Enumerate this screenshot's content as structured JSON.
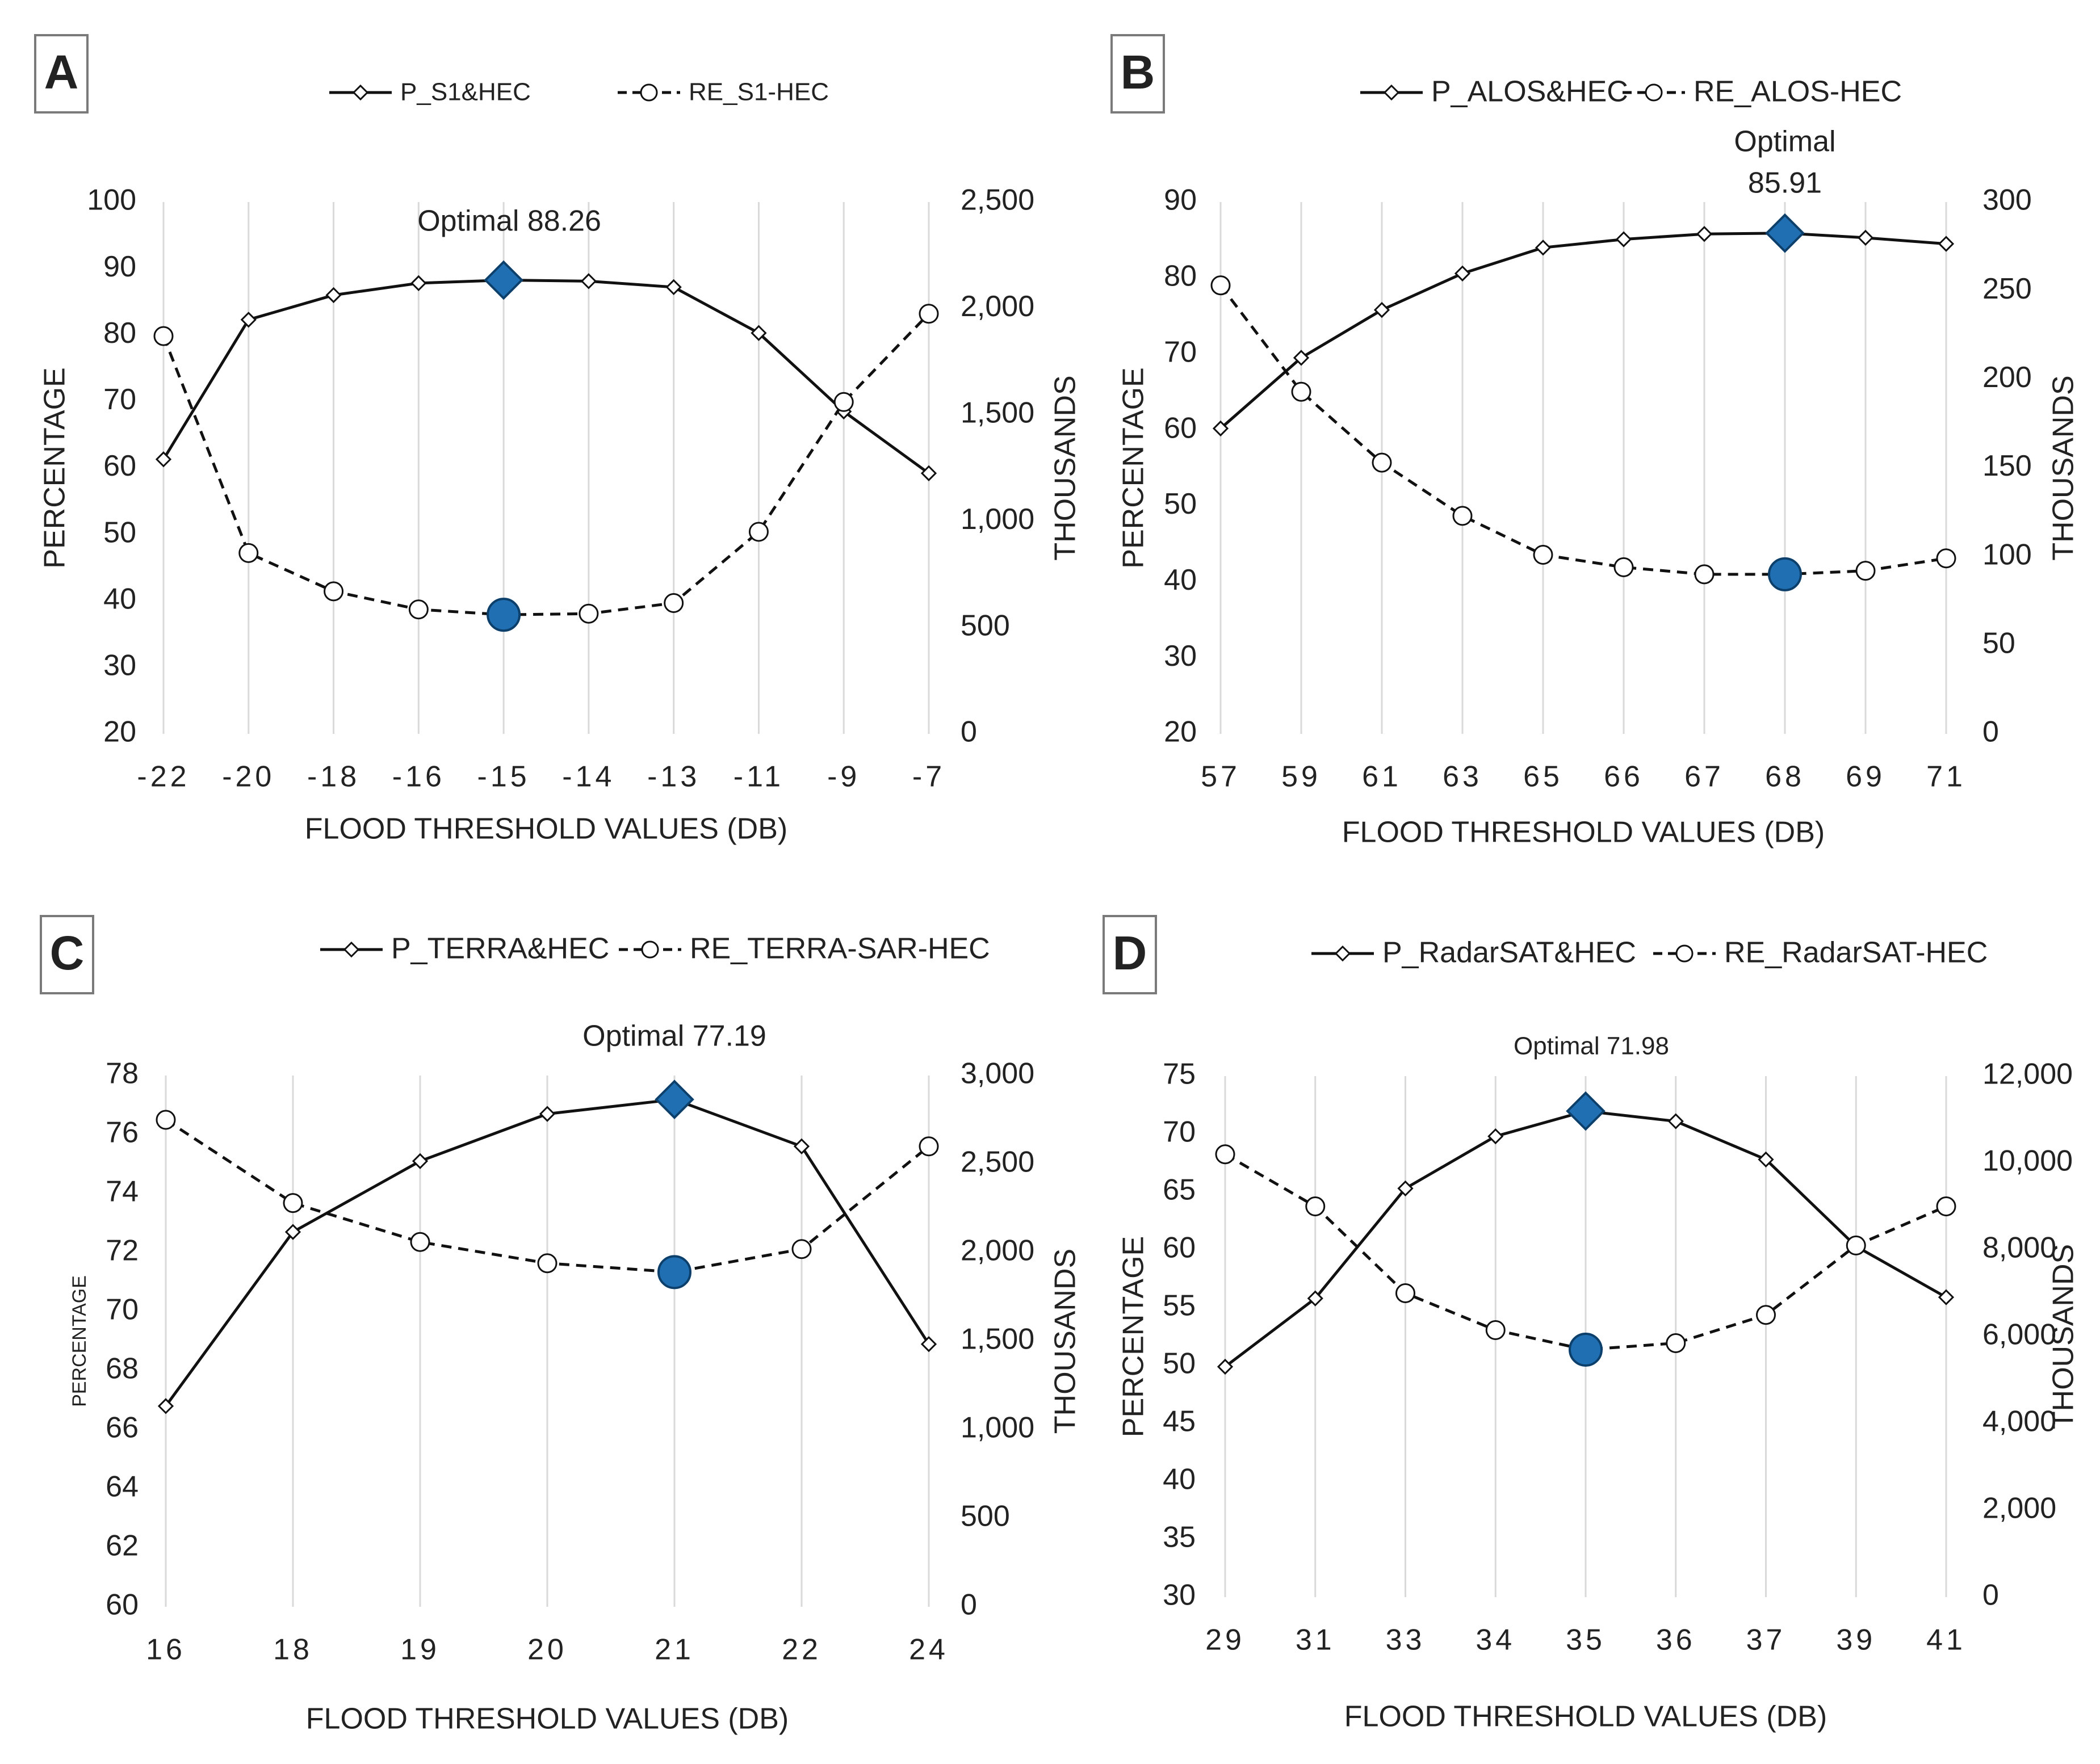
{
  "figure": {
    "colors": {
      "line": "#111111",
      "grid": "#d9d9d9",
      "marker_fill": "#ffffff",
      "highlight": "#1f6fb2",
      "highlight_stroke": "#0d3f6b",
      "panel_border": "#7a7a7a"
    }
  },
  "chart_data": [
    {
      "type": "line",
      "panel_label": "A",
      "categories": [
        "-22",
        "-20",
        "-18",
        "-16",
        "-15",
        "-14",
        "-13",
        "-11",
        "-9",
        "-7"
      ],
      "series": [
        {
          "name": "P_S1&HEC",
          "axis": "left",
          "marker": "diamond",
          "dash": "solid",
          "values": [
            61.3,
            82.3,
            86.0,
            87.8,
            88.26,
            88.1,
            87.2,
            80.3,
            68.5,
            59.2
          ]
        },
        {
          "name": "RE_S1-HEC",
          "axis": "right",
          "marker": "circle",
          "dash": "dashed",
          "values": [
            1870,
            850,
            670,
            585,
            560,
            565,
            615,
            950,
            1560,
            1975
          ]
        }
      ],
      "optimal_index": 4,
      "annotation": "Optimal 88.26",
      "xlabel": "FLOOD THRESHOLD VALUES (DB)",
      "ylabel": "PERCENTAGE",
      "y2label": "THOUSANDS",
      "ylim": [
        20,
        100
      ],
      "yticks": [
        "20",
        "30",
        "40",
        "50",
        "60",
        "70",
        "80",
        "90",
        "100"
      ],
      "y2lim": [
        0,
        2500
      ],
      "y2ticks": [
        "0",
        "500",
        "1,000",
        "1,500",
        "2,000",
        "2,500"
      ],
      "grid": "vertical"
    },
    {
      "type": "line",
      "panel_label": "B",
      "categories": [
        "57",
        "59",
        "61",
        "63",
        "65",
        "66",
        "67",
        "68",
        "69",
        "71"
      ],
      "series": [
        {
          "name": "P_ALOS&HEC",
          "axis": "left",
          "marker": "diamond",
          "dash": "solid",
          "values": [
            60.2,
            69.5,
            75.8,
            80.6,
            84.0,
            85.1,
            85.8,
            85.91,
            85.3,
            84.5
          ]
        },
        {
          "name": "RE_ALOS-HEC",
          "axis": "right",
          "marker": "circle",
          "dash": "dashed",
          "values": [
            253,
            193,
            153,
            123,
            101,
            94,
            90,
            90,
            92,
            99
          ]
        }
      ],
      "optimal_index": 7,
      "annotation_lines": [
        "Optimal",
        "85.91"
      ],
      "xlabel": "FLOOD THRESHOLD VALUES (DB)",
      "ylabel": "PERCENTAGE",
      "y2label": "THOUSANDS",
      "ylim": [
        20,
        90
      ],
      "yticks": [
        "20",
        "30",
        "40",
        "50",
        "60",
        "70",
        "80",
        "90"
      ],
      "y2lim": [
        0,
        300
      ],
      "y2ticks": [
        "0",
        "50",
        "100",
        "150",
        "200",
        "250",
        "300"
      ],
      "grid": "vertical"
    },
    {
      "type": "line",
      "panel_label": "C",
      "categories": [
        "16",
        "18",
        "19",
        "20",
        "21",
        "22",
        "24"
      ],
      "series": [
        {
          "name": "P_TERRA&HEC",
          "axis": "left",
          "marker": "diamond",
          "dash": "solid",
          "values": [
            66.8,
            72.7,
            75.1,
            76.7,
            77.19,
            75.6,
            68.9
          ]
        },
        {
          "name": "RE_TERRA-SAR-HEC",
          "axis": "right",
          "marker": "circle",
          "dash": "dashed",
          "values": [
            2750,
            2280,
            2060,
            1940,
            1890,
            2020,
            2600
          ]
        }
      ],
      "optimal_index": 4,
      "annotation": "Optimal 77.19",
      "xlabel": "FLOOD THRESHOLD VALUES (DB)",
      "ylabel": "PERCENTAGE",
      "y2label": "THOUSANDS",
      "ylim": [
        60,
        78
      ],
      "yticks": [
        "60",
        "62",
        "64",
        "66",
        "68",
        "70",
        "72",
        "74",
        "76",
        "78"
      ],
      "y2lim": [
        0,
        3000
      ],
      "y2ticks": [
        "0",
        "500",
        "1,000",
        "1,500",
        "2,000",
        "2,500",
        "3,000"
      ],
      "grid": "vertical"
    },
    {
      "type": "line",
      "panel_label": "D",
      "categories": [
        "29",
        "31",
        "33",
        "34",
        "35",
        "36",
        "37",
        "39",
        "41"
      ],
      "series": [
        {
          "name": "P_RadarSAT&HEC",
          "axis": "left",
          "marker": "diamond",
          "dash": "solid",
          "values": [
            49.9,
            55.8,
            65.3,
            69.8,
            71.98,
            71.1,
            67.8,
            60.3,
            55.9
          ]
        },
        {
          "name": "RE_RadarSAT-HEC",
          "axis": "right",
          "marker": "circle",
          "dash": "dashed",
          "values": [
            10200,
            9000,
            7000,
            6150,
            5700,
            5850,
            6500,
            8100,
            9000
          ]
        }
      ],
      "optimal_index": 4,
      "annotation": "Optimal 71.98",
      "xlabel": "FLOOD THRESHOLD VALUES (DB)",
      "ylabel": "PERCENTAGE",
      "y2label": "THOUSANDS",
      "ylim": [
        30,
        75
      ],
      "yticks": [
        "30",
        "35",
        "40",
        "45",
        "50",
        "55",
        "60",
        "65",
        "70",
        "75"
      ],
      "y2lim": [
        0,
        12000
      ],
      "y2ticks": [
        "0",
        "2,000",
        "4,000",
        "6,000",
        "8,000",
        "10,000",
        "12,000"
      ],
      "grid": "vertical"
    }
  ]
}
